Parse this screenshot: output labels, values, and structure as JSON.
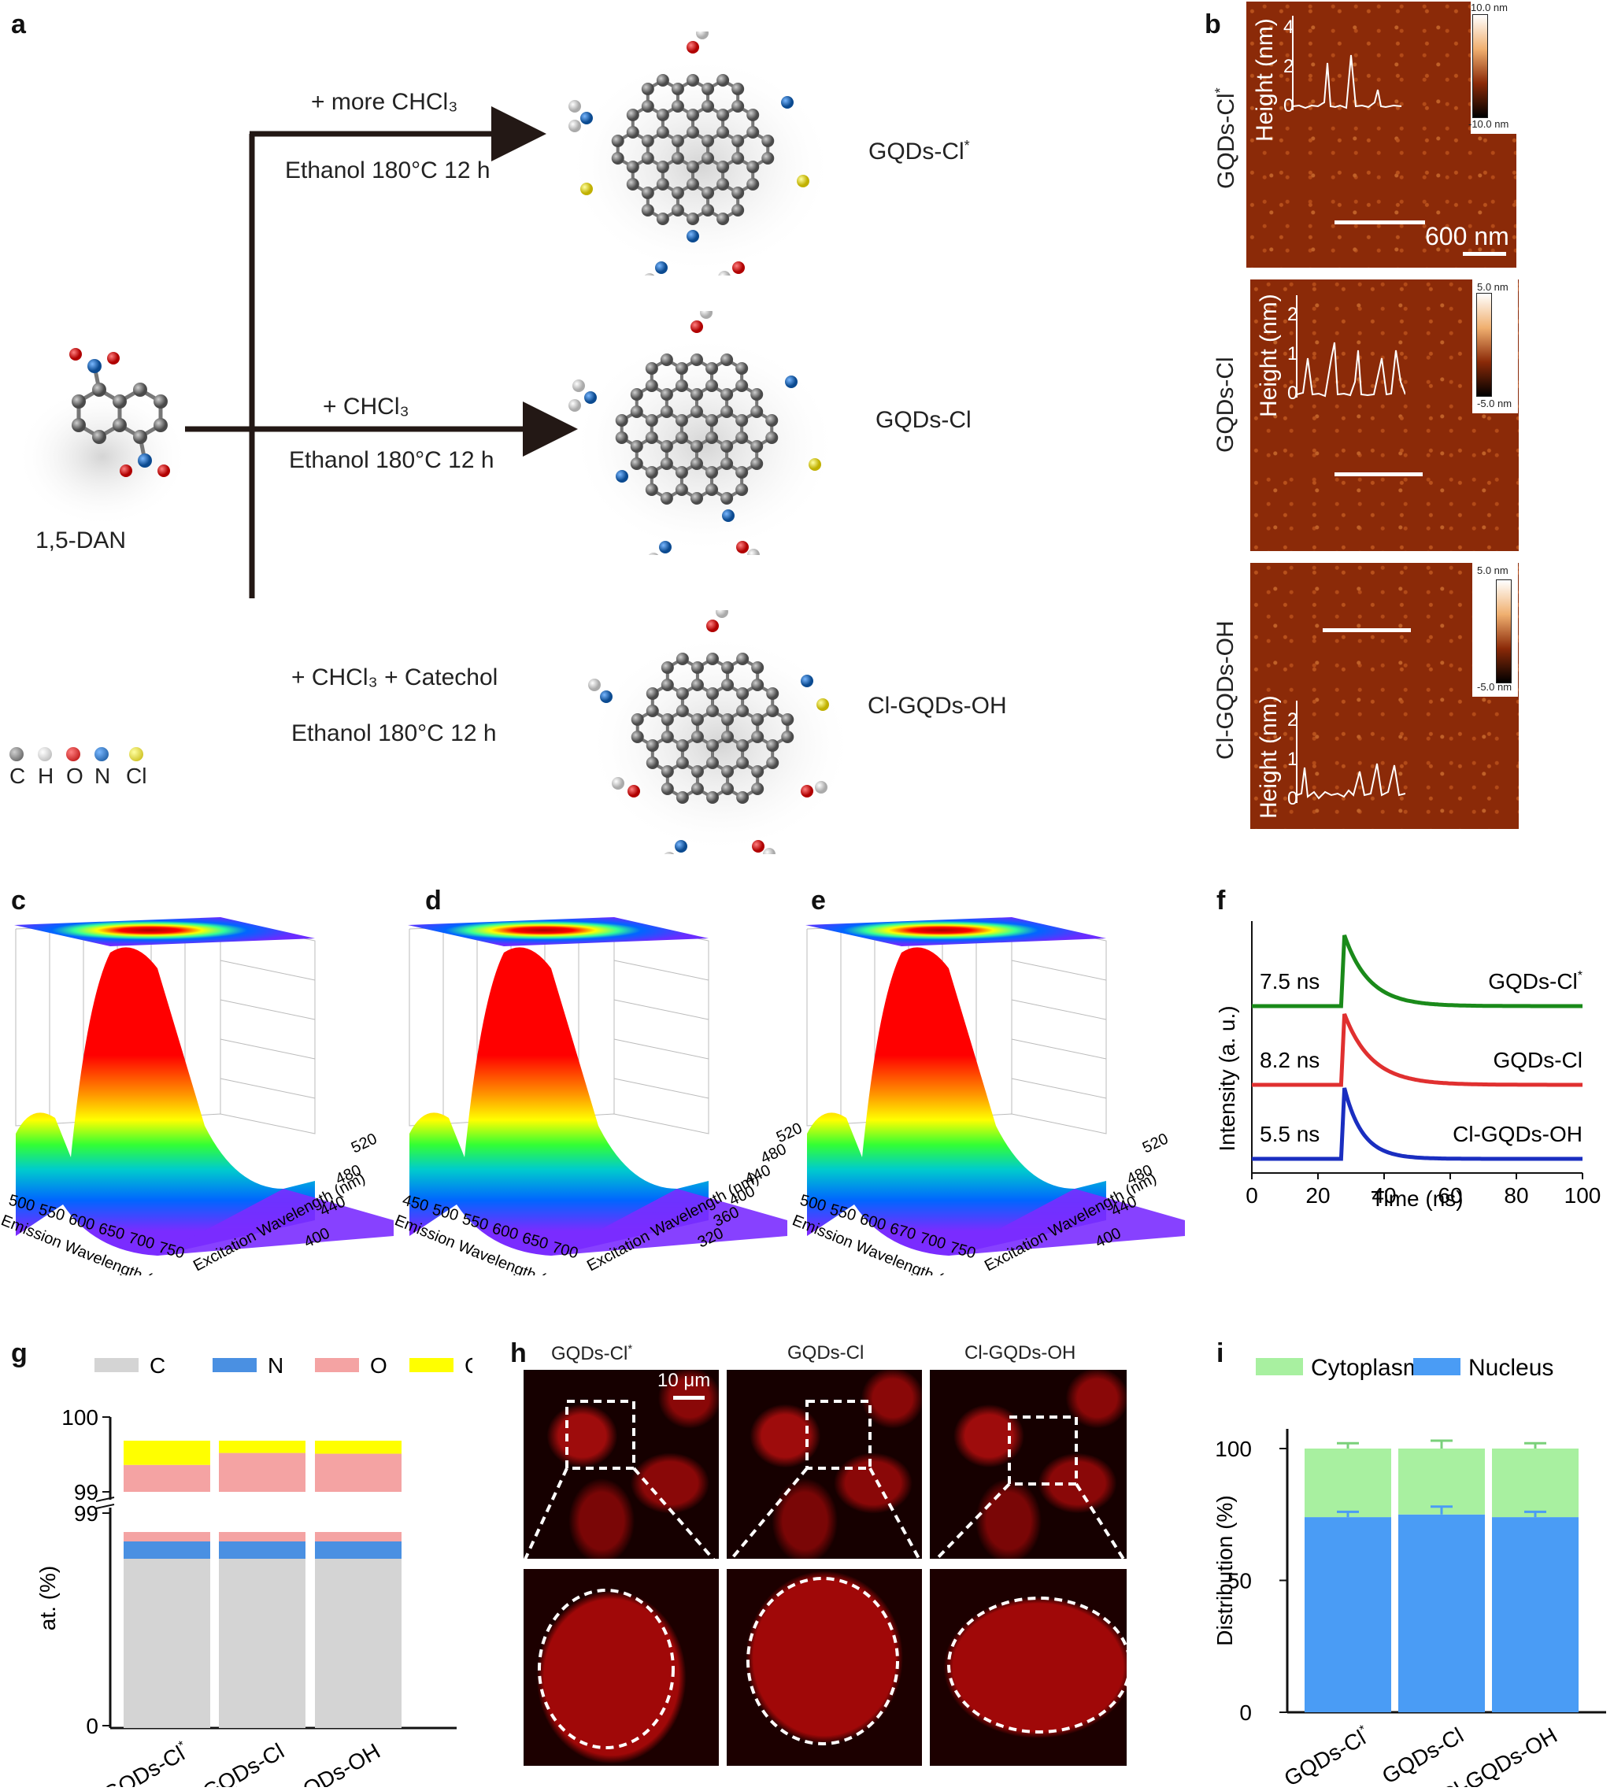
{
  "panels": {
    "a": "a",
    "b": "b",
    "c": "c",
    "d": "d",
    "e": "e",
    "f": "f",
    "g": "g",
    "h": "h",
    "i": "i"
  },
  "synthesis": {
    "precursor": "1,5-DAN",
    "routes": [
      {
        "reagent": "+  more CHCl₃",
        "conditions": "Ethanol 180°C 12 h",
        "product": "GQDs-Cl",
        "product_sup": "*"
      },
      {
        "reagent": "+    CHCl₃",
        "conditions": "Ethanol 180°C 12 h",
        "product": "GQDs-Cl",
        "product_sup": ""
      },
      {
        "reagent": "+  CHCl₃ +  Catechol",
        "conditions": "Ethanol 180°C 12 h",
        "product": "Cl-GQDs-OH",
        "product_sup": ""
      }
    ],
    "legend": [
      {
        "symbol": "C",
        "color": "#666666"
      },
      {
        "symbol": "H",
        "color": "#eeeeee"
      },
      {
        "symbol": "O",
        "color": "#d41010"
      },
      {
        "symbol": "N",
        "color": "#1565b0"
      },
      {
        "symbol": "Cl",
        "color": "#f0e010"
      }
    ]
  },
  "afm": {
    "samples": [
      {
        "name": "GQDs-Cl",
        "sup": "*",
        "scale_max": "10.0 nm",
        "scale_min": "-10.0 nm",
        "ylabel": "Height (nm)",
        "ticks": [
          "4",
          "2",
          "0"
        ]
      },
      {
        "name": "GQDs-Cl",
        "sup": "",
        "scale_max": "5.0 nm",
        "scale_min": "-5.0 nm",
        "ylabel": "Height (nm)",
        "ticks": [
          "2",
          "1",
          "0"
        ]
      },
      {
        "name": "Cl-GQDs-OH",
        "sup": "",
        "scale_max": "5.0 nm",
        "scale_min": "-5.0 nm",
        "ylabel": "Height (nm)",
        "ticks": [
          "2",
          "1",
          "0"
        ]
      }
    ],
    "scalebar": "600 nm"
  },
  "pl3d": [
    {
      "em_ticks": [
        "500",
        "550",
        "600",
        "650",
        "700",
        "750"
      ],
      "ex_ticks": [
        "400",
        "440",
        "480",
        "520"
      ],
      "xlabel": "Emission Wavelength (nm)",
      "ylabel": "Excitation Wavelength (nm)"
    },
    {
      "em_ticks": [
        "450",
        "500",
        "550",
        "600",
        "650",
        "700"
      ],
      "ex_ticks": [
        "320",
        "360",
        "400",
        "440",
        "480",
        "520"
      ],
      "xlabel": "Emission Wavelength (nm)",
      "ylabel": "Excitation Wavelength (nm)"
    },
    {
      "em_ticks": [
        "500",
        "550",
        "600",
        "670",
        "700",
        "750"
      ],
      "ex_ticks": [
        "400",
        "440",
        "480",
        "520"
      ],
      "xlabel": "Emission Wavelength (nm)",
      "ylabel": "Excitation Wavelength (nm)"
    }
  ],
  "chart_data": [
    {
      "type": "line",
      "id": "f",
      "xlabel": "Time (ns)",
      "ylabel": "Intensity (a. u.)",
      "xlim": [
        0,
        100
      ],
      "xticks": [
        "0",
        "20",
        "40",
        "60",
        "80",
        "100"
      ],
      "series": [
        {
          "name": "GQDs-Cl*",
          "lifetime": "7.5 ns",
          "color": "#1a8a1a",
          "peak_x": 28,
          "tau": 7.5
        },
        {
          "name": "GQDs-Cl",
          "lifetime": "8.2 ns",
          "color": "#e03030",
          "peak_x": 28,
          "tau": 8.2
        },
        {
          "name": "Cl-GQDs-OH",
          "lifetime": "5.5 ns",
          "color": "#1a2ec0",
          "peak_x": 28,
          "tau": 5.5
        }
      ]
    },
    {
      "type": "bar",
      "id": "g",
      "stacked": true,
      "ylabel": "at. (%)",
      "yticks_low": [
        "0",
        "99"
      ],
      "yticks_high": [
        "99",
        "100"
      ],
      "categories": [
        "GQDs-Cl*",
        "GQDs-Cl",
        "Cl-GQDs-OH"
      ],
      "series": [
        {
          "name": "C",
          "color": "#d4d4d4",
          "values": [
            98.8,
            98.79,
            98.78
          ]
        },
        {
          "name": "N",
          "color": "#4a90e2",
          "values": [
            0.08,
            0.08,
            0.08
          ]
        },
        {
          "name": "O",
          "color": "#f4a3a3",
          "values": [
            0.48,
            0.65,
            0.65
          ]
        },
        {
          "name": "Cl",
          "color": "#ffff00",
          "values": [
            0.33,
            0.18,
            0.18
          ]
        }
      ]
    },
    {
      "type": "bar",
      "id": "i",
      "stacked": true,
      "ylabel": "Distribution (%)",
      "ylim": [
        0,
        100
      ],
      "yticks": [
        "0",
        "50",
        "100"
      ],
      "categories": [
        "GQDs-Cl*",
        "GQDs-Cl",
        "Cl-GQDs-OH"
      ],
      "series": [
        {
          "name": "Nucleus",
          "color": "#4a9cf5",
          "values": [
            74,
            75,
            74
          ],
          "errors": [
            2,
            3,
            2
          ]
        },
        {
          "name": "Cytoplasm",
          "color": "#a8f0a0",
          "values": [
            26,
            25,
            26
          ],
          "errors": [
            2,
            3,
            2
          ]
        }
      ]
    }
  ],
  "confocal": {
    "titles": [
      "GQDs-Cl",
      "GQDs-Cl",
      "Cl-GQDs-OH"
    ],
    "title_sups": [
      "*",
      "",
      ""
    ],
    "scalebar": "10 μm"
  }
}
